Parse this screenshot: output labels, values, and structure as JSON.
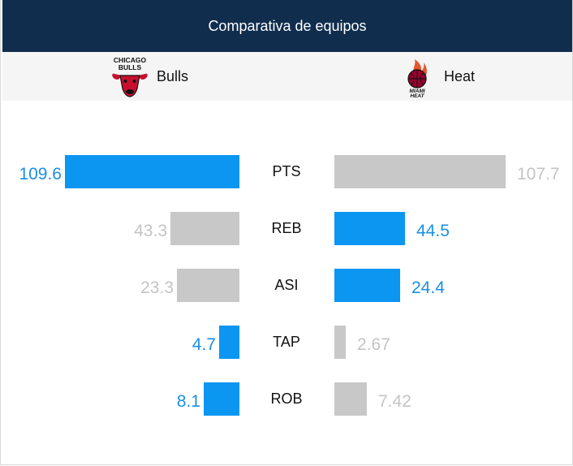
{
  "header": {
    "title": "Comparativa de equipos"
  },
  "teams": {
    "home": {
      "name": "Bulls",
      "logo_text": [
        "CHICAGO",
        "BULLS"
      ],
      "logo_icon": "bull-head-icon"
    },
    "away": {
      "name": "Heat",
      "logo_text": [
        "MIAMI",
        "HEAT"
      ],
      "logo_icon": "flaming-basketball-icon"
    }
  },
  "colors": {
    "header_bg": "#102d4e",
    "leader": "#0b96f2",
    "trailer": "#c8c8c8",
    "leader_text": "#1a8fe6",
    "trailer_text": "#c4c4c4"
  },
  "chart_data": {
    "type": "bar",
    "categories": [
      "PTS",
      "REB",
      "ASI",
      "TAP",
      "ROB"
    ],
    "series": [
      {
        "name": "Bulls",
        "values": [
          109.6,
          43.3,
          23.3,
          4.7,
          8.1
        ],
        "labels": [
          "109.6",
          "43.3",
          "23.3",
          "4.7",
          "8.1"
        ]
      },
      {
        "name": "Heat",
        "values": [
          107.7,
          44.5,
          24.4,
          2.67,
          7.42
        ],
        "labels": [
          "107.7",
          "44.5",
          "24.4",
          "2.67",
          "7.42"
        ]
      }
    ],
    "scales": [
      110,
      110,
      65,
      40,
      40
    ],
    "layout": "mirrored-horizontal"
  }
}
